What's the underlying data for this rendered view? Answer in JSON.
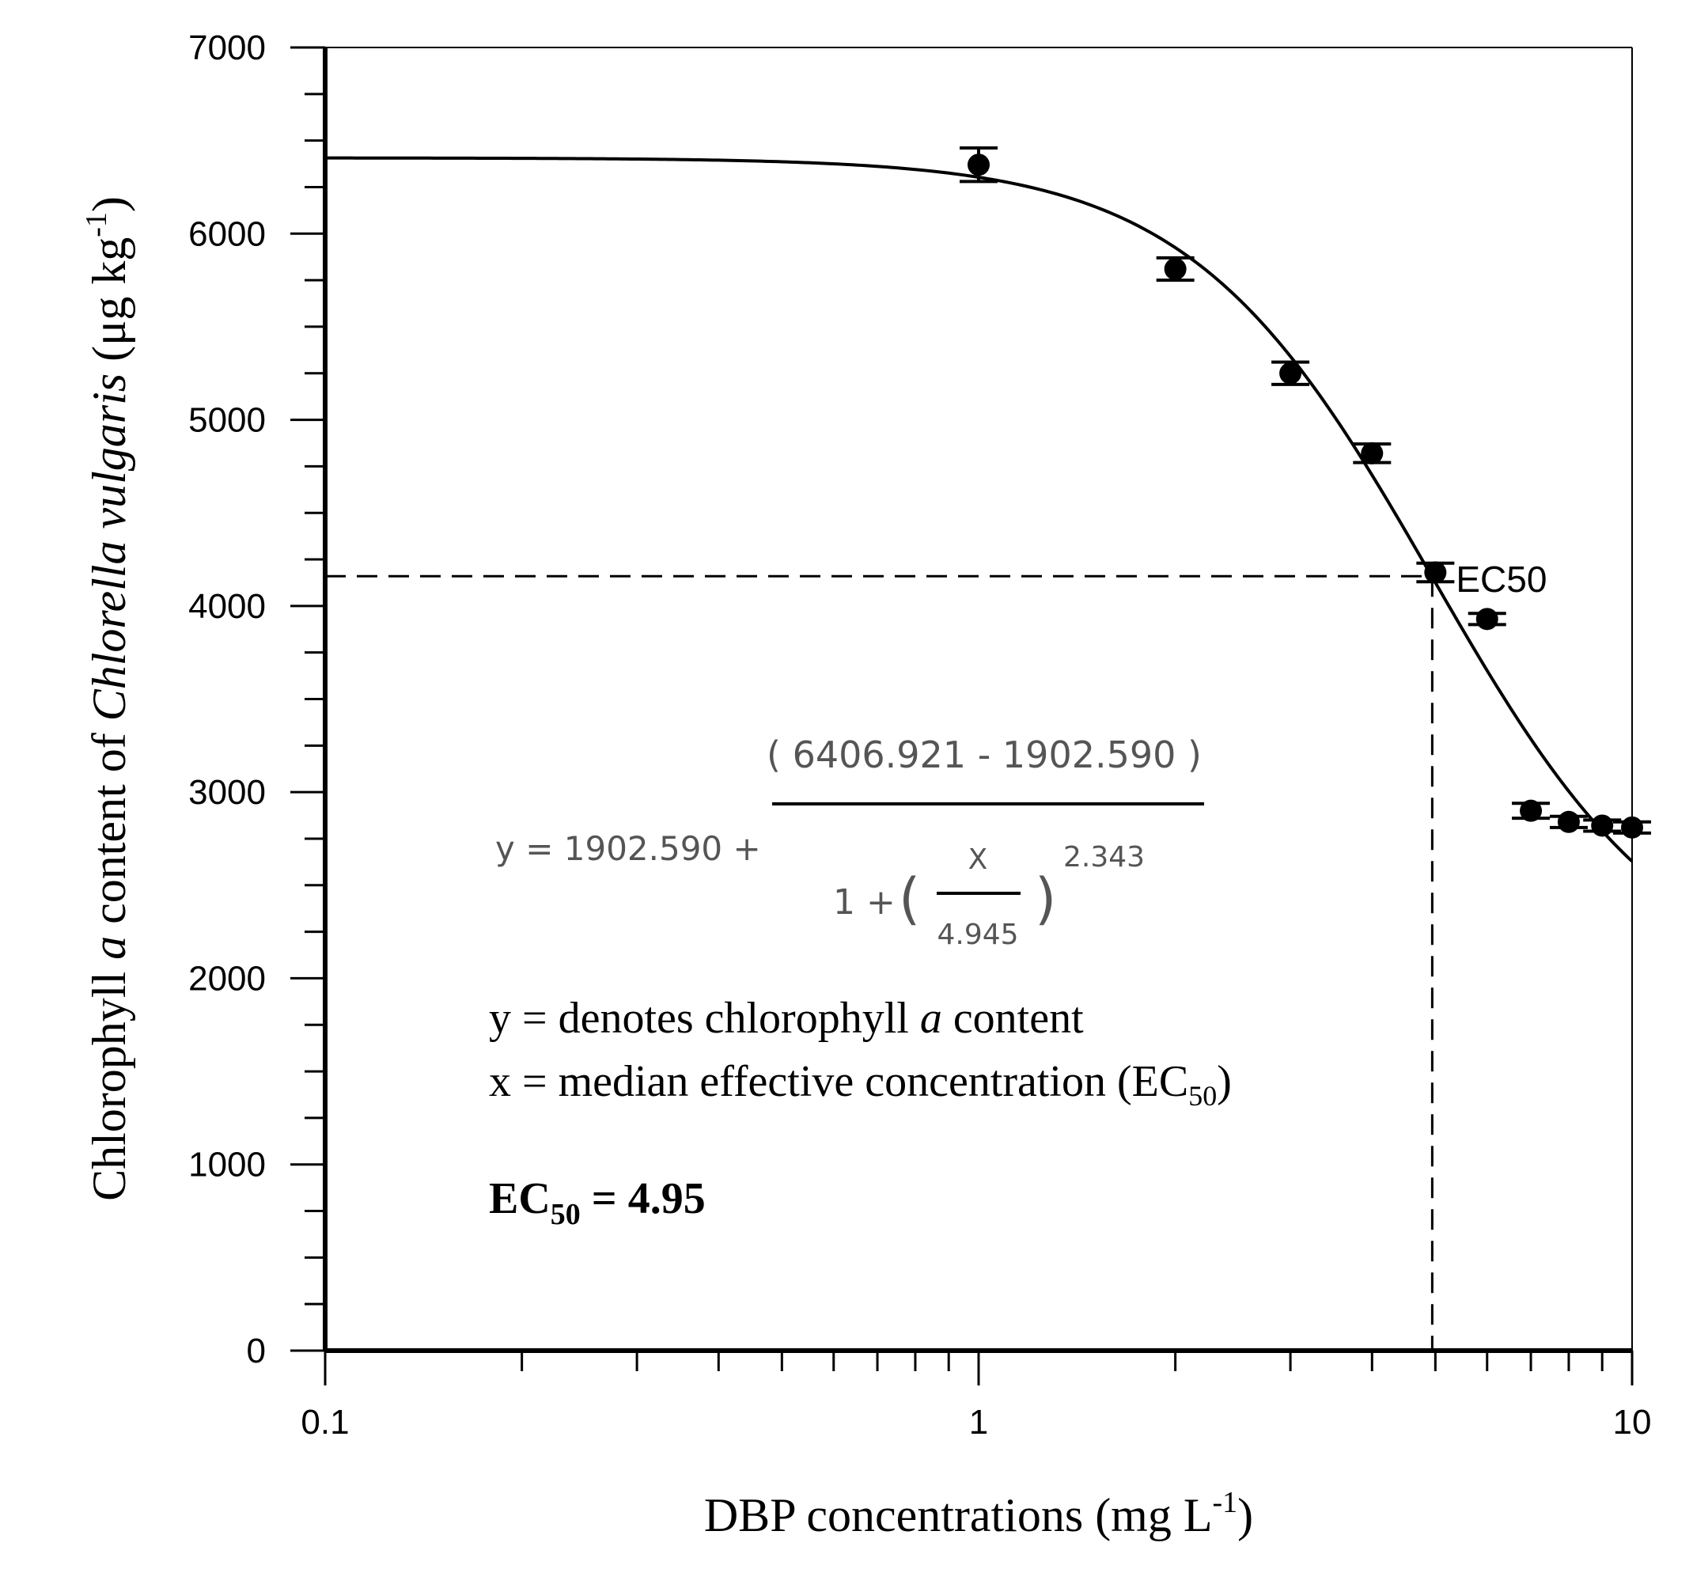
{
  "chart_data": {
    "type": "scatter",
    "x_scale": "log",
    "xlim": [
      0.1,
      10
    ],
    "ylim": [
      0,
      7000
    ],
    "xlabel_main": "DBP concentrations (mg L",
    "xlabel_sup": "-1",
    "xlabel_end": ")",
    "ylabel_pre": "Chlorophyll ",
    "ylabel_a": "a",
    "ylabel_mid": " content of ",
    "ylabel_species": "Chlorella vulgaris",
    "ylabel_unit": " (μg kg",
    "ylabel_sup": "-1",
    "ylabel_end": ")",
    "x_ticks": [
      0.1,
      1,
      10
    ],
    "x_tick_labels": [
      "0.1",
      "1",
      "10"
    ],
    "y_ticks": [
      0,
      1000,
      2000,
      3000,
      4000,
      5000,
      6000,
      7000
    ],
    "y_tick_labels": [
      "0",
      "1000",
      "2000",
      "3000",
      "4000",
      "5000",
      "6000",
      "7000"
    ],
    "points": [
      {
        "x": 1,
        "y": 6370,
        "err": 90
      },
      {
        "x": 2,
        "y": 5810,
        "err": 60
      },
      {
        "x": 3,
        "y": 5250,
        "err": 60
      },
      {
        "x": 4,
        "y": 4820,
        "err": 50
      },
      {
        "x": 5,
        "y": 4180,
        "err": 50
      },
      {
        "x": 6,
        "y": 3930,
        "err": 30
      },
      {
        "x": 7,
        "y": 2900,
        "err": 40
      },
      {
        "x": 8,
        "y": 2840,
        "err": 30
      },
      {
        "x": 9,
        "y": 2820,
        "err": 30
      },
      {
        "x": 10,
        "y": 2810,
        "err": 30
      }
    ],
    "fit": {
      "bottom": 1902.59,
      "top": 6406.921,
      "ec50": 4.945,
      "hill": 2.343
    },
    "ec50_guide": {
      "x": 4.945,
      "y": 4160
    },
    "ec50_tag": "EC50"
  },
  "equation": {
    "lhs": "y = 1902.590 +",
    "numerator": "( 6406.921 - 1902.590 )",
    "denominator_lead": "1 +",
    "open_paren": "(",
    "close_paren": ")",
    "inner_numerator": "X",
    "inner_denominator": "4.945",
    "exponent": "2.343"
  },
  "notes": {
    "y_def_pre": "y = denotes chlorophyll ",
    "y_def_a": "a",
    "y_def_post": " content",
    "x_def_pre": "x = median effective concentration (EC",
    "x_def_sub": "50",
    "x_def_post": ")",
    "ec50_pre": "EC",
    "ec50_sub": "50",
    "ec50_post": " = 4.95"
  }
}
